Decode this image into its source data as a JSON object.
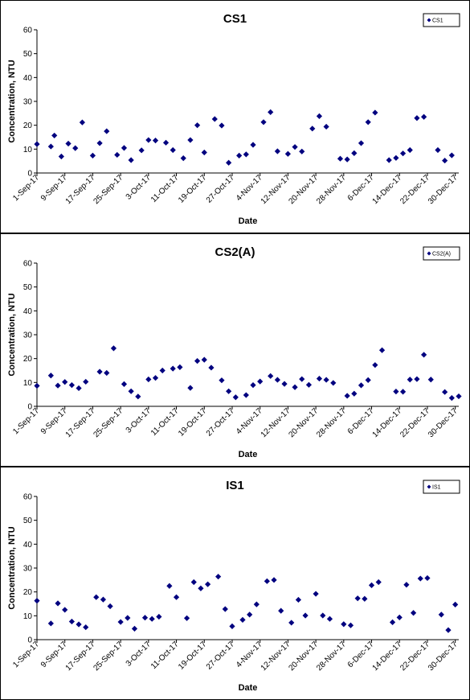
{
  "chart_data": [
    {
      "type": "scatter",
      "title": "CS1",
      "xlabel": "Date",
      "ylabel": "Concentration, NTU",
      "ylim": [
        0,
        60
      ],
      "yticks": [
        "0",
        "10",
        "20",
        "30",
        "40",
        "50",
        "60"
      ],
      "xlim": [
        "2017-09-01",
        "2017-12-31"
      ],
      "xticks": [
        "1-Sep-17",
        "9-Sep-17",
        "17-Sep-17",
        "25-Sep-17",
        "3-Oct-17",
        "11-Oct-17",
        "19-Oct-17",
        "27-Oct-17",
        "4-Nov-17",
        "12-Nov-17",
        "20-Nov-17",
        "28-Nov-17",
        "6-Dec-17",
        "14-Dec-17",
        "22-Dec-17",
        "30-Dec-17"
      ],
      "legend": "top-right",
      "grid": false,
      "marker_color": "#00007f",
      "series": [
        {
          "name": "CS1",
          "points": [
            [
              "2017-09-01",
              12.1
            ],
            [
              "2017-09-05",
              11.1
            ],
            [
              "2017-09-06",
              15.7
            ],
            [
              "2017-09-08",
              6.9
            ],
            [
              "2017-09-10",
              12.3
            ],
            [
              "2017-09-12",
              10.4
            ],
            [
              "2017-09-14",
              21.2
            ],
            [
              "2017-09-17",
              7.3
            ],
            [
              "2017-09-19",
              12.5
            ],
            [
              "2017-09-21",
              17.5
            ],
            [
              "2017-09-24",
              7.6
            ],
            [
              "2017-09-26",
              10.5
            ],
            [
              "2017-09-28",
              5.4
            ],
            [
              "2017-10-01",
              9.5
            ],
            [
              "2017-10-03",
              13.8
            ],
            [
              "2017-10-05",
              13.6
            ],
            [
              "2017-10-08",
              12.7
            ],
            [
              "2017-10-10",
              9.6
            ],
            [
              "2017-10-13",
              6.2
            ],
            [
              "2017-10-15",
              13.8
            ],
            [
              "2017-10-17",
              20.0
            ],
            [
              "2017-10-19",
              8.6
            ],
            [
              "2017-10-22",
              22.6
            ],
            [
              "2017-10-24",
              19.9
            ],
            [
              "2017-10-26",
              4.3
            ],
            [
              "2017-10-29",
              7.3
            ],
            [
              "2017-10-31",
              7.8
            ],
            [
              "2017-11-02",
              11.8
            ],
            [
              "2017-11-05",
              21.3
            ],
            [
              "2017-11-07",
              25.5
            ],
            [
              "2017-11-09",
              9.1
            ],
            [
              "2017-11-12",
              8.0
            ],
            [
              "2017-11-14",
              10.9
            ],
            [
              "2017-11-16",
              9.0
            ],
            [
              "2017-11-19",
              18.6
            ],
            [
              "2017-11-21",
              23.8
            ],
            [
              "2017-11-23",
              19.4
            ],
            [
              "2017-11-27",
              6.0
            ],
            [
              "2017-11-29",
              5.7
            ],
            [
              "2017-12-01",
              8.3
            ],
            [
              "2017-12-03",
              12.5
            ],
            [
              "2017-12-05",
              21.3
            ],
            [
              "2017-12-07",
              25.3
            ],
            [
              "2017-12-11",
              5.4
            ],
            [
              "2017-12-13",
              6.3
            ],
            [
              "2017-12-15",
              8.2
            ],
            [
              "2017-12-17",
              9.6
            ],
            [
              "2017-12-19",
              23.0
            ],
            [
              "2017-12-21",
              23.5
            ],
            [
              "2017-12-25",
              9.6
            ],
            [
              "2017-12-27",
              5.2
            ],
            [
              "2017-12-29",
              7.4
            ]
          ]
        }
      ]
    },
    {
      "type": "scatter",
      "title": "CS2(A)",
      "xlabel": "Date",
      "ylabel": "Concentration, NTU",
      "ylim": [
        0,
        60
      ],
      "yticks": [
        "0",
        "10",
        "20",
        "30",
        "40",
        "50",
        "60"
      ],
      "xlim": [
        "2017-09-01",
        "2017-12-31"
      ],
      "xticks": [
        "1-Sep-17",
        "9-Sep-17",
        "17-Sep-17",
        "25-Sep-17",
        "3-Oct-17",
        "11-Oct-17",
        "19-Oct-17",
        "27-Oct-17",
        "4-Nov-17",
        "12-Nov-17",
        "20-Nov-17",
        "28-Nov-17",
        "6-Dec-17",
        "14-Dec-17",
        "22-Dec-17",
        "30-Dec-17"
      ],
      "legend": "top-right",
      "grid": false,
      "marker_color": "#00007f",
      "series": [
        {
          "name": "CS2(A)",
          "points": [
            [
              "2017-09-01",
              8.6
            ],
            [
              "2017-09-05",
              12.9
            ],
            [
              "2017-09-07",
              8.7
            ],
            [
              "2017-09-09",
              10.2
            ],
            [
              "2017-09-11",
              8.9
            ],
            [
              "2017-09-13",
              7.6
            ],
            [
              "2017-09-15",
              10.3
            ],
            [
              "2017-09-19",
              14.5
            ],
            [
              "2017-09-21",
              14.0
            ],
            [
              "2017-09-23",
              24.3
            ],
            [
              "2017-09-26",
              9.3
            ],
            [
              "2017-09-28",
              6.3
            ],
            [
              "2017-09-30",
              4.1
            ],
            [
              "2017-10-03",
              11.3
            ],
            [
              "2017-10-05",
              11.9
            ],
            [
              "2017-10-07",
              15.0
            ],
            [
              "2017-10-10",
              15.8
            ],
            [
              "2017-10-12",
              16.4
            ],
            [
              "2017-10-15",
              7.7
            ],
            [
              "2017-10-17",
              19.0
            ],
            [
              "2017-10-19",
              19.5
            ],
            [
              "2017-10-21",
              16.2
            ],
            [
              "2017-10-24",
              10.9
            ],
            [
              "2017-10-26",
              6.3
            ],
            [
              "2017-10-28",
              3.8
            ],
            [
              "2017-10-31",
              4.7
            ],
            [
              "2017-11-02",
              8.9
            ],
            [
              "2017-11-04",
              10.4
            ],
            [
              "2017-11-07",
              12.7
            ],
            [
              "2017-11-09",
              11.1
            ],
            [
              "2017-11-11",
              9.4
            ],
            [
              "2017-11-14",
              8.0
            ],
            [
              "2017-11-16",
              11.4
            ],
            [
              "2017-11-18",
              9.0
            ],
            [
              "2017-11-21",
              11.6
            ],
            [
              "2017-11-23",
              11.1
            ],
            [
              "2017-11-25",
              9.8
            ],
            [
              "2017-11-29",
              4.4
            ],
            [
              "2017-12-01",
              5.3
            ],
            [
              "2017-12-03",
              8.8
            ],
            [
              "2017-12-05",
              11.0
            ],
            [
              "2017-12-07",
              17.3
            ],
            [
              "2017-12-09",
              23.5
            ],
            [
              "2017-12-13",
              6.2
            ],
            [
              "2017-12-15",
              6.1
            ],
            [
              "2017-12-17",
              11.2
            ],
            [
              "2017-12-19",
              11.4
            ],
            [
              "2017-12-21",
              21.6
            ],
            [
              "2017-12-23",
              11.2
            ],
            [
              "2017-12-27",
              6.0
            ],
            [
              "2017-12-29",
              3.5
            ],
            [
              "2017-12-31",
              4.2
            ]
          ]
        }
      ]
    },
    {
      "type": "scatter",
      "title": "IS1",
      "xlabel": "Date",
      "ylabel": "Concentration, NTU",
      "ylim": [
        0,
        60
      ],
      "yticks": [
        "0",
        "10",
        "20",
        "30",
        "40",
        "50",
        "60"
      ],
      "xlim": [
        "2017-09-01",
        "2017-12-31"
      ],
      "xticks": [
        "1-Sep-17",
        "9-Sep-17",
        "17-Sep-17",
        "25-Sep-17",
        "3-Oct-17",
        "11-Oct-17",
        "19-Oct-17",
        "27-Oct-17",
        "4-Nov-17",
        "12-Nov-17",
        "20-Nov-17",
        "28-Nov-17",
        "6-Dec-17",
        "14-Dec-17",
        "22-Dec-17",
        "30-Dec-17"
      ],
      "legend": "top-right",
      "grid": false,
      "marker_color": "#00007f",
      "series": [
        {
          "name": "IS1",
          "points": [
            [
              "2017-09-01",
              16.3
            ],
            [
              "2017-09-05",
              6.8
            ],
            [
              "2017-09-07",
              15.2
            ],
            [
              "2017-09-09",
              12.5
            ],
            [
              "2017-09-11",
              7.6
            ],
            [
              "2017-09-13",
              6.4
            ],
            [
              "2017-09-15",
              5.2
            ],
            [
              "2017-09-18",
              17.8
            ],
            [
              "2017-09-20",
              16.8
            ],
            [
              "2017-09-22",
              14.0
            ],
            [
              "2017-09-25",
              7.4
            ],
            [
              "2017-09-27",
              9.1
            ],
            [
              "2017-09-29",
              4.6
            ],
            [
              "2017-10-02",
              9.2
            ],
            [
              "2017-10-04",
              8.7
            ],
            [
              "2017-10-06",
              9.6
            ],
            [
              "2017-10-09",
              22.5
            ],
            [
              "2017-10-11",
              17.8
            ],
            [
              "2017-10-14",
              9.0
            ],
            [
              "2017-10-16",
              24.1
            ],
            [
              "2017-10-18",
              21.5
            ],
            [
              "2017-10-20",
              23.2
            ],
            [
              "2017-10-23",
              26.4
            ],
            [
              "2017-10-25",
              12.8
            ],
            [
              "2017-10-27",
              5.6
            ],
            [
              "2017-10-30",
              8.3
            ],
            [
              "2017-11-01",
              10.5
            ],
            [
              "2017-11-03",
              14.8
            ],
            [
              "2017-11-06",
              24.5
            ],
            [
              "2017-11-08",
              25.0
            ],
            [
              "2017-11-10",
              12.1
            ],
            [
              "2017-11-13",
              7.1
            ],
            [
              "2017-11-15",
              16.7
            ],
            [
              "2017-11-17",
              10.1
            ],
            [
              "2017-11-20",
              19.2
            ],
            [
              "2017-11-22",
              10.1
            ],
            [
              "2017-11-24",
              8.7
            ],
            [
              "2017-11-28",
              6.5
            ],
            [
              "2017-11-30",
              6.0
            ],
            [
              "2017-12-02",
              17.3
            ],
            [
              "2017-12-04",
              17.1
            ],
            [
              "2017-12-06",
              22.8
            ],
            [
              "2017-12-08",
              24.1
            ],
            [
              "2017-12-12",
              7.3
            ],
            [
              "2017-12-14",
              9.3
            ],
            [
              "2017-12-16",
              23.0
            ],
            [
              "2017-12-18",
              11.2
            ],
            [
              "2017-12-20",
              25.6
            ],
            [
              "2017-12-22",
              25.8
            ],
            [
              "2017-12-26",
              10.5
            ],
            [
              "2017-12-28",
              4.0
            ],
            [
              "2017-12-30",
              14.7
            ]
          ]
        }
      ]
    }
  ]
}
